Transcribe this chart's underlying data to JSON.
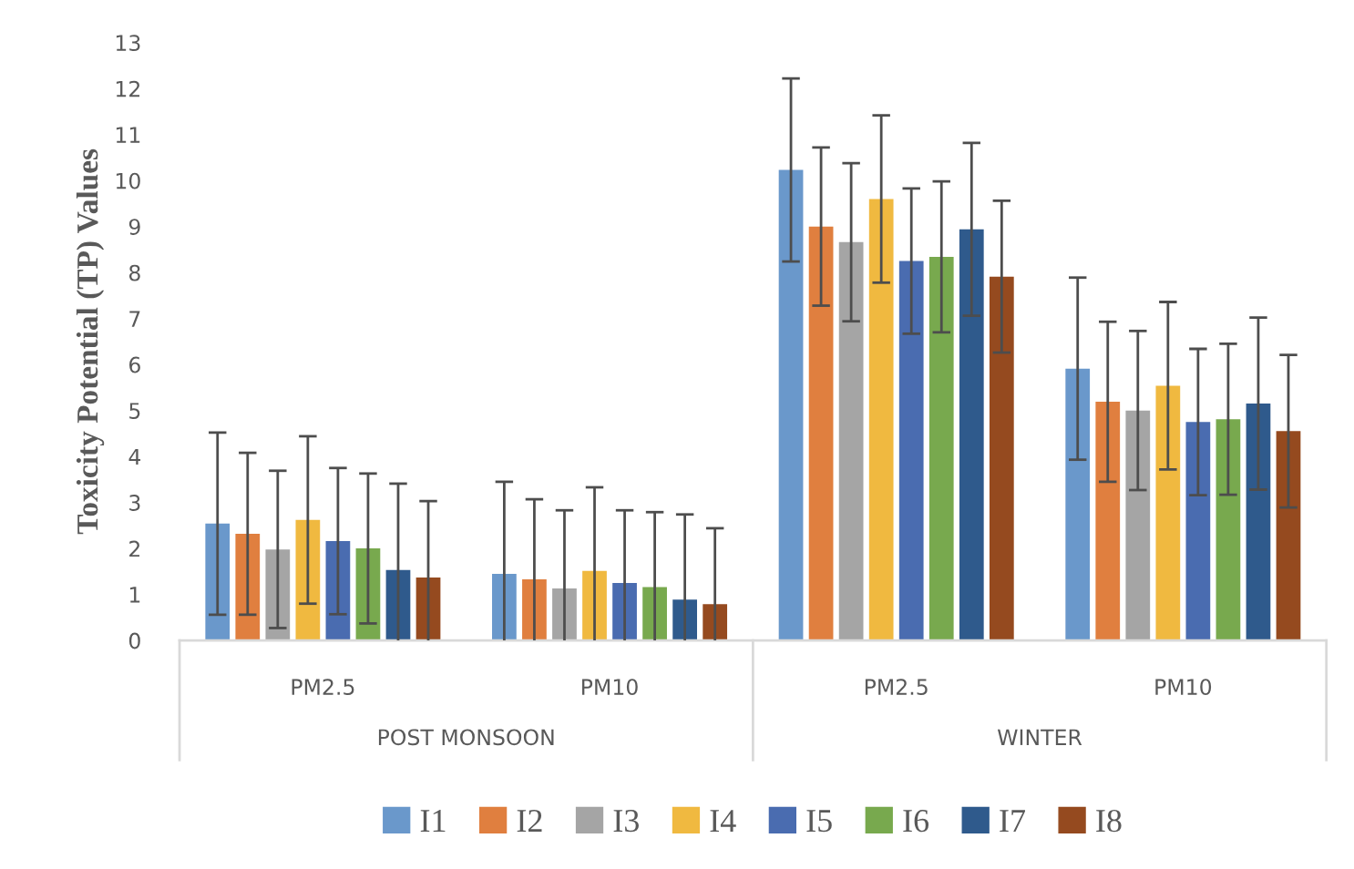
{
  "chart_data": {
    "type": "bar",
    "ylabel": "Toxicity Potential (TP) Values",
    "categories": [
      "PM2.5",
      "PM10",
      "PM2.5",
      "PM10"
    ],
    "annotations": [
      "POST MONSOON",
      "WINTER"
    ],
    "series": [
      {
        "name": "I1",
        "color": "#6a98cb",
        "values": [
          2.54,
          1.45,
          10.23,
          5.91
        ],
        "errors": [
          1.98,
          2.0,
          1.99,
          1.98
        ]
      },
      {
        "name": "I2",
        "color": "#e07f3f",
        "values": [
          2.32,
          1.33,
          9.0,
          5.19
        ],
        "errors": [
          1.76,
          1.74,
          1.72,
          1.74
        ]
      },
      {
        "name": "I3",
        "color": "#a5a5a5",
        "values": [
          1.98,
          1.13,
          8.66,
          5.0
        ],
        "errors": [
          1.71,
          1.7,
          1.72,
          1.73
        ]
      },
      {
        "name": "I4",
        "color": "#f0b940",
        "values": [
          2.62,
          1.51,
          9.6,
          5.54
        ],
        "errors": [
          1.82,
          1.82,
          1.82,
          1.82
        ]
      },
      {
        "name": "I5",
        "color": "#4a6cb0",
        "values": [
          2.16,
          1.25,
          8.25,
          4.75
        ],
        "errors": [
          1.59,
          1.58,
          1.58,
          1.59
        ]
      },
      {
        "name": "I6",
        "color": "#78a94e",
        "values": [
          2.0,
          1.16,
          8.34,
          4.81
        ],
        "errors": [
          1.63,
          1.63,
          1.64,
          1.64
        ]
      },
      {
        "name": "I7",
        "color": "#2f5a8c",
        "values": [
          1.53,
          0.89,
          8.94,
          5.15
        ],
        "errors": [
          1.88,
          1.85,
          1.88,
          1.87
        ]
      },
      {
        "name": "I8",
        "color": "#954a1f",
        "values": [
          1.37,
          0.79,
          7.91,
          4.55
        ],
        "errors": [
          1.66,
          1.65,
          1.65,
          1.66
        ]
      }
    ],
    "ylim": [
      0,
      13
    ],
    "yticks": [
      0,
      1,
      2,
      3,
      4,
      5,
      6,
      7,
      8,
      9,
      10,
      11,
      12,
      13
    ],
    "grid": false,
    "legend": "bottom"
  }
}
